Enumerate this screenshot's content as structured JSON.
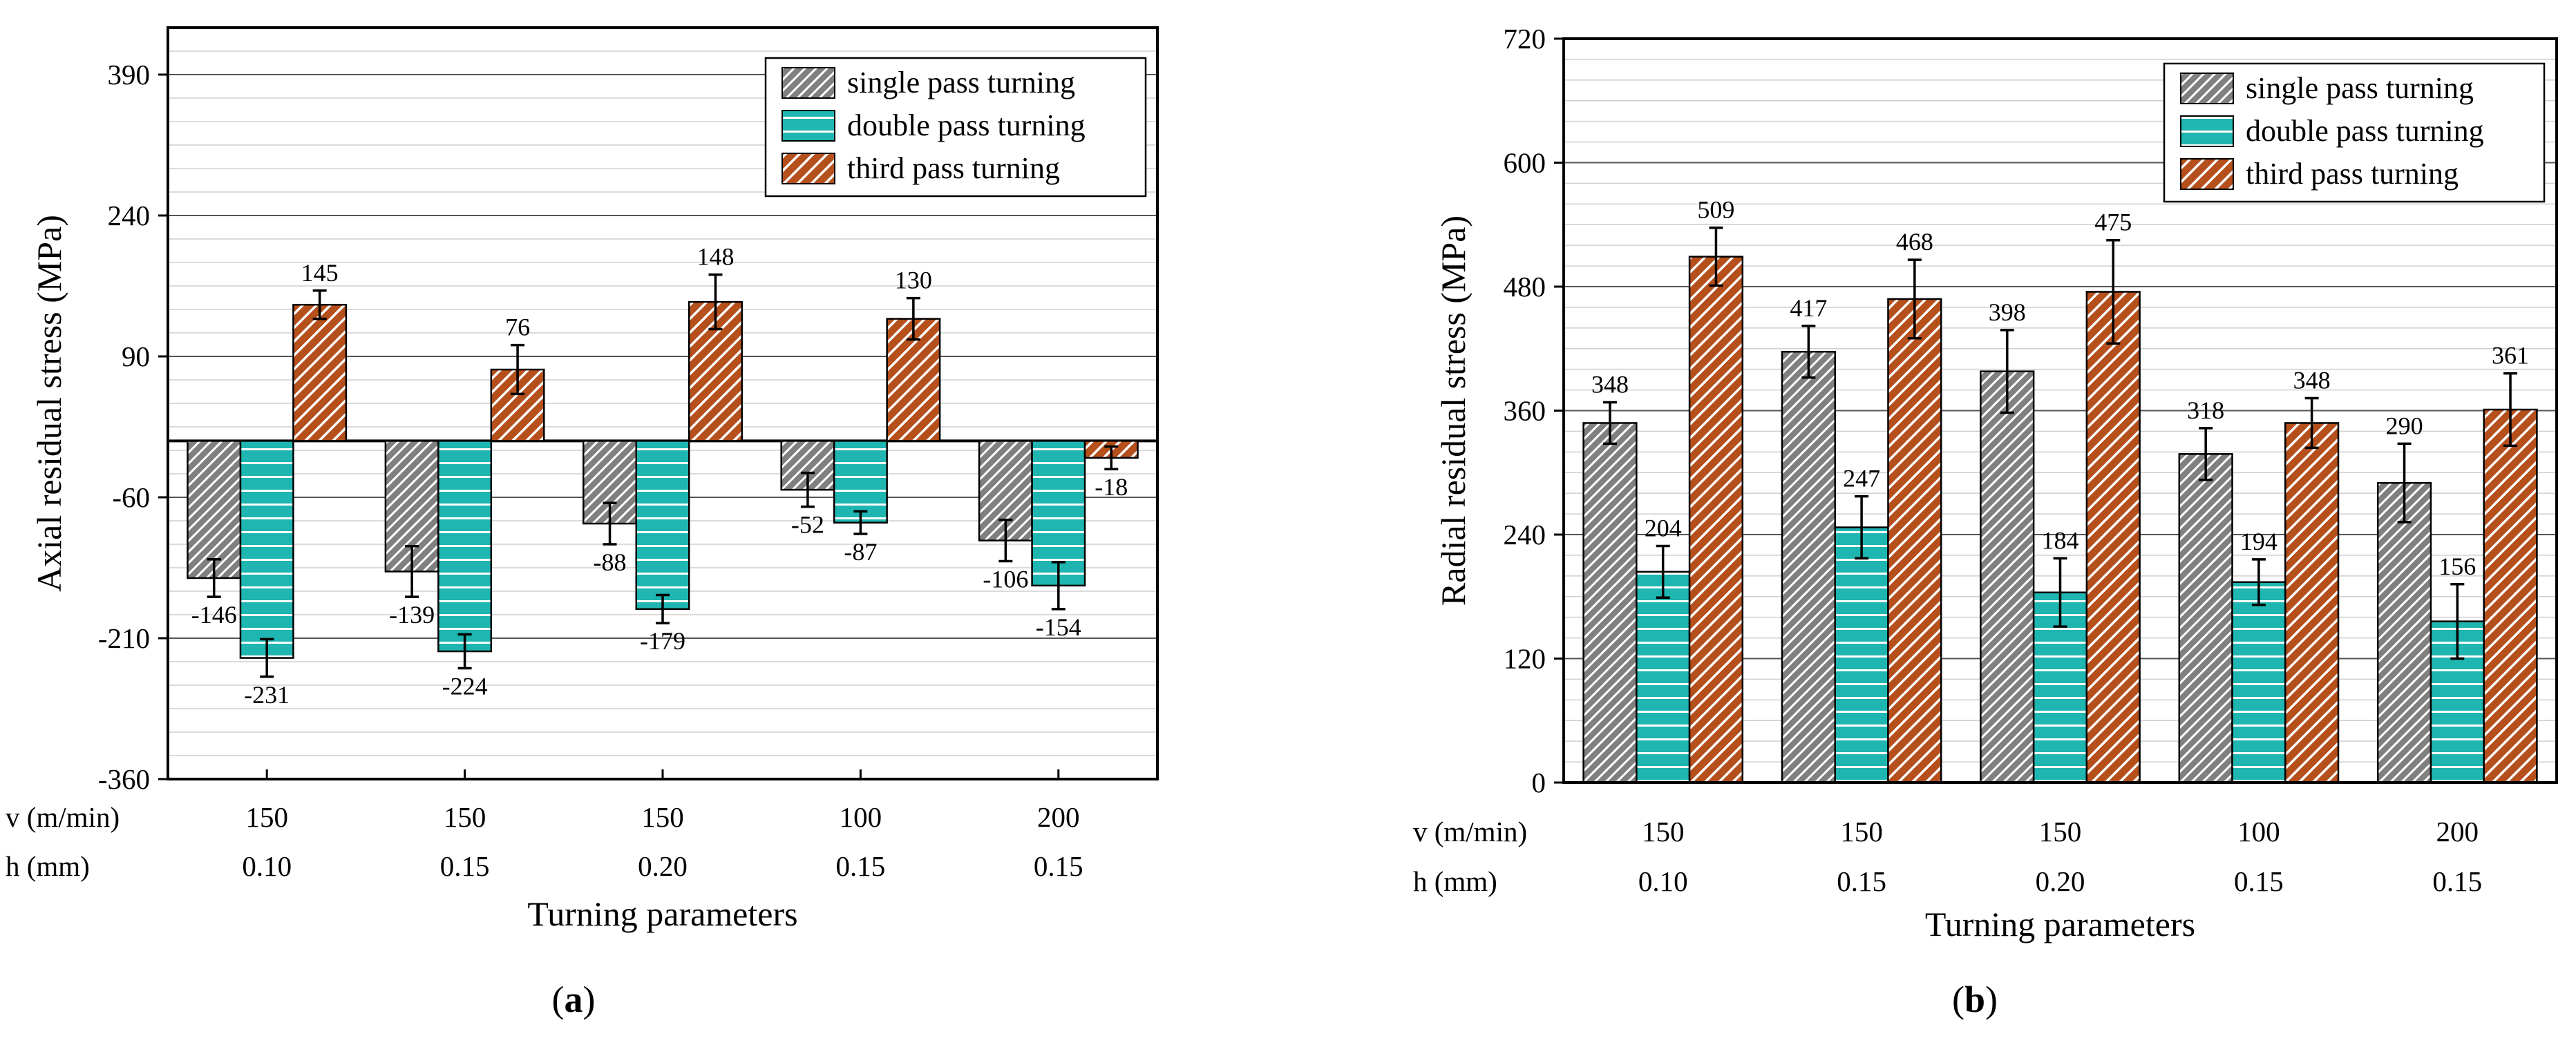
{
  "chart_data": [
    {
      "type": "bar",
      "panel_label": "a",
      "categories": [
        "150 / 0.10",
        "150 / 0.15",
        "150 / 0.20",
        "100 / 0.15",
        "200 / 0.15"
      ],
      "param_rows": [
        {
          "label": "v (m/min)",
          "values": [
            "150",
            "150",
            "150",
            "100",
            "200"
          ]
        },
        {
          "label": "h (mm)",
          "values": [
            "0.10",
            "0.15",
            "0.20",
            "0.15",
            "0.15"
          ]
        }
      ],
      "xlabel": "Turning parameters",
      "ylabel": "Axial residual stress (MPa)",
      "ylim": [
        -360,
        440
      ],
      "yticks": [
        -360,
        -210,
        -60,
        90,
        240,
        390
      ],
      "series": [
        {
          "name": "single pass turning",
          "values": [
            -146,
            -139,
            -88,
            -52,
            -106
          ],
          "errors": [
            20,
            27,
            22,
            18,
            22
          ]
        },
        {
          "name": "double pass turning",
          "values": [
            -231,
            -224,
            -179,
            -87,
            -154
          ],
          "errors": [
            20,
            18,
            15,
            12,
            25
          ]
        },
        {
          "name": "third pass turning",
          "values": [
            145,
            76,
            148,
            130,
            -18
          ],
          "errors": [
            15,
            26,
            29,
            22,
            12
          ]
        }
      ],
      "legend": "top-right"
    },
    {
      "type": "bar",
      "panel_label": "b",
      "categories": [
        "150 / 0.10",
        "150 / 0.15",
        "150 / 0.20",
        "100 / 0.15",
        "200 / 0.15"
      ],
      "param_rows": [
        {
          "label": "v (m/min)",
          "values": [
            "150",
            "150",
            "150",
            "100",
            "200"
          ]
        },
        {
          "label": "h (mm)",
          "values": [
            "0.10",
            "0.15",
            "0.20",
            "0.15",
            "0.15"
          ]
        }
      ],
      "xlabel": "Turning parameters",
      "ylabel": "Radial residual stress (MPa)",
      "ylim": [
        0,
        720
      ],
      "yticks": [
        0,
        120,
        240,
        360,
        480,
        600,
        720
      ],
      "series": [
        {
          "name": "single pass turning",
          "values": [
            348,
            417,
            398,
            318,
            290
          ],
          "errors": [
            20,
            25,
            40,
            25,
            38
          ]
        },
        {
          "name": "double pass turning",
          "values": [
            204,
            247,
            184,
            194,
            156
          ],
          "errors": [
            25,
            30,
            33,
            22,
            36
          ]
        },
        {
          "name": "third pass turning",
          "values": [
            509,
            468,
            475,
            348,
            361
          ],
          "errors": [
            28,
            38,
            50,
            24,
            35
          ]
        }
      ],
      "legend": "top-right"
    }
  ],
  "colors": {
    "single": "#808080",
    "double": "#1fb5b0",
    "third": "#b5501c",
    "hatch": "#ffffff"
  }
}
